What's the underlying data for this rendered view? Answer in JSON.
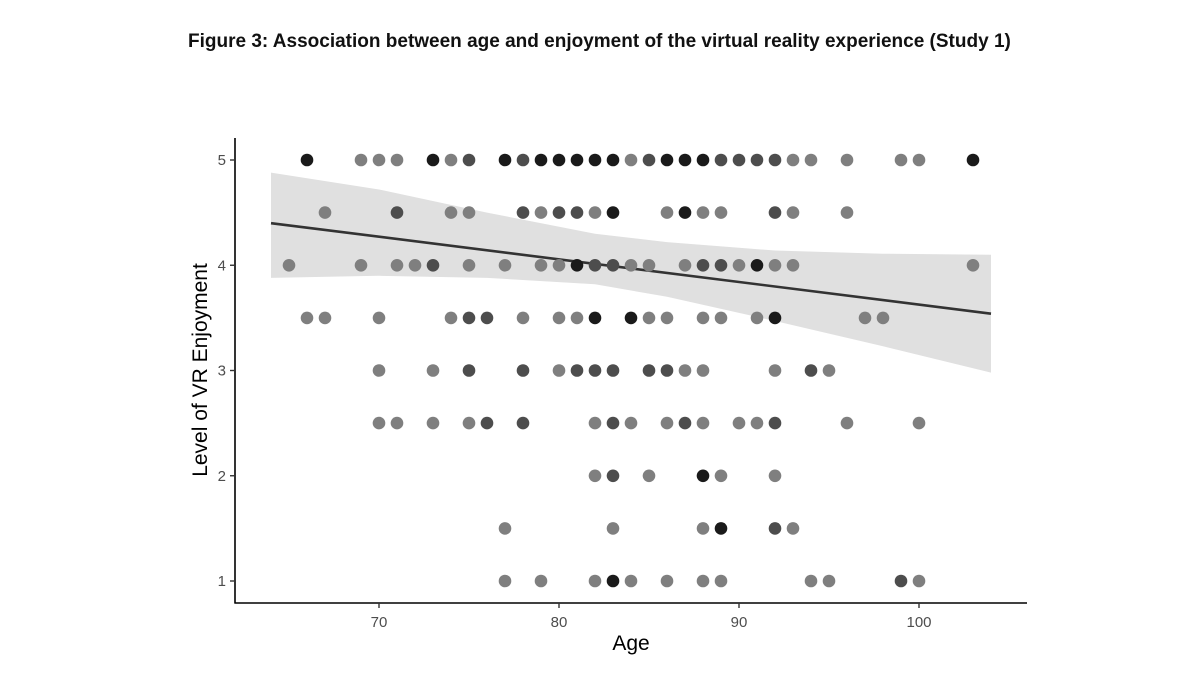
{
  "figure_title": "Figure 3: Association between age and enjoyment of the virtual reality experience (Study 1)",
  "chart_data": {
    "type": "scatter",
    "title": "Figure 3: Association between age and enjoyment of the virtual reality experience (Study 1)",
    "xlabel": "Age",
    "ylabel": "Level of VR Enjoyment",
    "xlim": [
      62,
      106
    ],
    "ylim": [
      0.8,
      5.2
    ],
    "x_ticks": [
      70,
      80,
      90,
      100
    ],
    "y_ticks": [
      1,
      2,
      3,
      4,
      5
    ],
    "grid": false,
    "legend": "none",
    "colors": {
      "light": "#7f7f7f",
      "medium": "#4d4d4d",
      "dark": "#1a1a1a",
      "line": "#333333",
      "band": "#e0e0e0"
    },
    "trend_line": {
      "x": [
        64,
        104
      ],
      "y": [
        4.4,
        3.54
      ]
    },
    "confidence_band": {
      "x": [
        64,
        70,
        76,
        82,
        86,
        92,
        98,
        104
      ],
      "upper": [
        4.88,
        4.72,
        4.5,
        4.3,
        4.22,
        4.14,
        4.11,
        4.1
      ],
      "lower": [
        3.88,
        3.9,
        3.88,
        3.82,
        3.7,
        3.47,
        3.23,
        2.98
      ]
    },
    "points": [
      {
        "x": 66,
        "y": 5,
        "shade": "dark"
      },
      {
        "x": 69,
        "y": 5,
        "shade": "light"
      },
      {
        "x": 70,
        "y": 5,
        "shade": "light"
      },
      {
        "x": 71,
        "y": 5,
        "shade": "light"
      },
      {
        "x": 73,
        "y": 5,
        "shade": "dark"
      },
      {
        "x": 74,
        "y": 5,
        "shade": "light"
      },
      {
        "x": 75,
        "y": 5,
        "shade": "medium"
      },
      {
        "x": 77,
        "y": 5,
        "shade": "dark"
      },
      {
        "x": 78,
        "y": 5,
        "shade": "medium"
      },
      {
        "x": 79,
        "y": 5,
        "shade": "dark"
      },
      {
        "x": 80,
        "y": 5,
        "shade": "dark"
      },
      {
        "x": 81,
        "y": 5,
        "shade": "dark"
      },
      {
        "x": 82,
        "y": 5,
        "shade": "dark"
      },
      {
        "x": 83,
        "y": 5,
        "shade": "dark"
      },
      {
        "x": 84,
        "y": 5,
        "shade": "light"
      },
      {
        "x": 85,
        "y": 5,
        "shade": "medium"
      },
      {
        "x": 86,
        "y": 5,
        "shade": "dark"
      },
      {
        "x": 87,
        "y": 5,
        "shade": "dark"
      },
      {
        "x": 88,
        "y": 5,
        "shade": "dark"
      },
      {
        "x": 89,
        "y": 5,
        "shade": "medium"
      },
      {
        "x": 90,
        "y": 5,
        "shade": "medium"
      },
      {
        "x": 91,
        "y": 5,
        "shade": "medium"
      },
      {
        "x": 92,
        "y": 5,
        "shade": "medium"
      },
      {
        "x": 93,
        "y": 5,
        "shade": "light"
      },
      {
        "x": 94,
        "y": 5,
        "shade": "light"
      },
      {
        "x": 96,
        "y": 5,
        "shade": "light"
      },
      {
        "x": 99,
        "y": 5,
        "shade": "light"
      },
      {
        "x": 100,
        "y": 5,
        "shade": "light"
      },
      {
        "x": 103,
        "y": 5,
        "shade": "dark"
      },
      {
        "x": 67,
        "y": 4.5,
        "shade": "light"
      },
      {
        "x": 71,
        "y": 4.5,
        "shade": "medium"
      },
      {
        "x": 74,
        "y": 4.5,
        "shade": "light"
      },
      {
        "x": 75,
        "y": 4.5,
        "shade": "light"
      },
      {
        "x": 78,
        "y": 4.5,
        "shade": "medium"
      },
      {
        "x": 79,
        "y": 4.5,
        "shade": "light"
      },
      {
        "x": 80,
        "y": 4.5,
        "shade": "medium"
      },
      {
        "x": 81,
        "y": 4.5,
        "shade": "medium"
      },
      {
        "x": 82,
        "y": 4.5,
        "shade": "light"
      },
      {
        "x": 83,
        "y": 4.5,
        "shade": "dark"
      },
      {
        "x": 86,
        "y": 4.5,
        "shade": "light"
      },
      {
        "x": 87,
        "y": 4.5,
        "shade": "dark"
      },
      {
        "x": 88,
        "y": 4.5,
        "shade": "light"
      },
      {
        "x": 89,
        "y": 4.5,
        "shade": "light"
      },
      {
        "x": 92,
        "y": 4.5,
        "shade": "medium"
      },
      {
        "x": 93,
        "y": 4.5,
        "shade": "light"
      },
      {
        "x": 96,
        "y": 4.5,
        "shade": "light"
      },
      {
        "x": 65,
        "y": 4,
        "shade": "light"
      },
      {
        "x": 69,
        "y": 4,
        "shade": "light"
      },
      {
        "x": 71,
        "y": 4,
        "shade": "light"
      },
      {
        "x": 72,
        "y": 4,
        "shade": "light"
      },
      {
        "x": 73,
        "y": 4,
        "shade": "medium"
      },
      {
        "x": 75,
        "y": 4,
        "shade": "light"
      },
      {
        "x": 77,
        "y": 4,
        "shade": "light"
      },
      {
        "x": 79,
        "y": 4,
        "shade": "light"
      },
      {
        "x": 80,
        "y": 4,
        "shade": "light"
      },
      {
        "x": 81,
        "y": 4,
        "shade": "dark"
      },
      {
        "x": 82,
        "y": 4,
        "shade": "medium"
      },
      {
        "x": 83,
        "y": 4,
        "shade": "medium"
      },
      {
        "x": 84,
        "y": 4,
        "shade": "light"
      },
      {
        "x": 85,
        "y": 4,
        "shade": "light"
      },
      {
        "x": 87,
        "y": 4,
        "shade": "light"
      },
      {
        "x": 88,
        "y": 4,
        "shade": "medium"
      },
      {
        "x": 89,
        "y": 4,
        "shade": "medium"
      },
      {
        "x": 90,
        "y": 4,
        "shade": "light"
      },
      {
        "x": 91,
        "y": 4,
        "shade": "dark"
      },
      {
        "x": 92,
        "y": 4,
        "shade": "light"
      },
      {
        "x": 93,
        "y": 4,
        "shade": "light"
      },
      {
        "x": 103,
        "y": 4,
        "shade": "light"
      },
      {
        "x": 66,
        "y": 3.5,
        "shade": "light"
      },
      {
        "x": 67,
        "y": 3.5,
        "shade": "light"
      },
      {
        "x": 70,
        "y": 3.5,
        "shade": "light"
      },
      {
        "x": 74,
        "y": 3.5,
        "shade": "light"
      },
      {
        "x": 75,
        "y": 3.5,
        "shade": "medium"
      },
      {
        "x": 76,
        "y": 3.5,
        "shade": "medium"
      },
      {
        "x": 78,
        "y": 3.5,
        "shade": "light"
      },
      {
        "x": 80,
        "y": 3.5,
        "shade": "light"
      },
      {
        "x": 81,
        "y": 3.5,
        "shade": "light"
      },
      {
        "x": 82,
        "y": 3.5,
        "shade": "dark"
      },
      {
        "x": 84,
        "y": 3.5,
        "shade": "dark"
      },
      {
        "x": 85,
        "y": 3.5,
        "shade": "light"
      },
      {
        "x": 86,
        "y": 3.5,
        "shade": "light"
      },
      {
        "x": 88,
        "y": 3.5,
        "shade": "light"
      },
      {
        "x": 89,
        "y": 3.5,
        "shade": "light"
      },
      {
        "x": 91,
        "y": 3.5,
        "shade": "light"
      },
      {
        "x": 92,
        "y": 3.5,
        "shade": "dark"
      },
      {
        "x": 97,
        "y": 3.5,
        "shade": "light"
      },
      {
        "x": 98,
        "y": 3.5,
        "shade": "light"
      },
      {
        "x": 70,
        "y": 3,
        "shade": "light"
      },
      {
        "x": 73,
        "y": 3,
        "shade": "light"
      },
      {
        "x": 75,
        "y": 3,
        "shade": "medium"
      },
      {
        "x": 78,
        "y": 3,
        "shade": "medium"
      },
      {
        "x": 80,
        "y": 3,
        "shade": "light"
      },
      {
        "x": 81,
        "y": 3,
        "shade": "medium"
      },
      {
        "x": 82,
        "y": 3,
        "shade": "medium"
      },
      {
        "x": 83,
        "y": 3,
        "shade": "medium"
      },
      {
        "x": 85,
        "y": 3,
        "shade": "medium"
      },
      {
        "x": 86,
        "y": 3,
        "shade": "medium"
      },
      {
        "x": 87,
        "y": 3,
        "shade": "light"
      },
      {
        "x": 88,
        "y": 3,
        "shade": "light"
      },
      {
        "x": 92,
        "y": 3,
        "shade": "light"
      },
      {
        "x": 94,
        "y": 3,
        "shade": "medium"
      },
      {
        "x": 95,
        "y": 3,
        "shade": "light"
      },
      {
        "x": 70,
        "y": 2.5,
        "shade": "light"
      },
      {
        "x": 71,
        "y": 2.5,
        "shade": "light"
      },
      {
        "x": 73,
        "y": 2.5,
        "shade": "light"
      },
      {
        "x": 75,
        "y": 2.5,
        "shade": "light"
      },
      {
        "x": 76,
        "y": 2.5,
        "shade": "medium"
      },
      {
        "x": 78,
        "y": 2.5,
        "shade": "medium"
      },
      {
        "x": 82,
        "y": 2.5,
        "shade": "light"
      },
      {
        "x": 83,
        "y": 2.5,
        "shade": "medium"
      },
      {
        "x": 84,
        "y": 2.5,
        "shade": "light"
      },
      {
        "x": 86,
        "y": 2.5,
        "shade": "light"
      },
      {
        "x": 87,
        "y": 2.5,
        "shade": "medium"
      },
      {
        "x": 88,
        "y": 2.5,
        "shade": "light"
      },
      {
        "x": 90,
        "y": 2.5,
        "shade": "light"
      },
      {
        "x": 91,
        "y": 2.5,
        "shade": "light"
      },
      {
        "x": 92,
        "y": 2.5,
        "shade": "medium"
      },
      {
        "x": 96,
        "y": 2.5,
        "shade": "light"
      },
      {
        "x": 100,
        "y": 2.5,
        "shade": "light"
      },
      {
        "x": 82,
        "y": 2,
        "shade": "light"
      },
      {
        "x": 83,
        "y": 2,
        "shade": "medium"
      },
      {
        "x": 85,
        "y": 2,
        "shade": "light"
      },
      {
        "x": 88,
        "y": 2,
        "shade": "dark"
      },
      {
        "x": 89,
        "y": 2,
        "shade": "light"
      },
      {
        "x": 92,
        "y": 2,
        "shade": "light"
      },
      {
        "x": 77,
        "y": 1.5,
        "shade": "light"
      },
      {
        "x": 83,
        "y": 1.5,
        "shade": "light"
      },
      {
        "x": 88,
        "y": 1.5,
        "shade": "light"
      },
      {
        "x": 89,
        "y": 1.5,
        "shade": "dark"
      },
      {
        "x": 92,
        "y": 1.5,
        "shade": "medium"
      },
      {
        "x": 93,
        "y": 1.5,
        "shade": "light"
      },
      {
        "x": 77,
        "y": 1,
        "shade": "light"
      },
      {
        "x": 79,
        "y": 1,
        "shade": "light"
      },
      {
        "x": 82,
        "y": 1,
        "shade": "light"
      },
      {
        "x": 83,
        "y": 1,
        "shade": "dark"
      },
      {
        "x": 84,
        "y": 1,
        "shade": "light"
      },
      {
        "x": 86,
        "y": 1,
        "shade": "light"
      },
      {
        "x": 88,
        "y": 1,
        "shade": "light"
      },
      {
        "x": 89,
        "y": 1,
        "shade": "light"
      },
      {
        "x": 94,
        "y": 1,
        "shade": "light"
      },
      {
        "x": 95,
        "y": 1,
        "shade": "light"
      },
      {
        "x": 99,
        "y": 1,
        "shade": "medium"
      },
      {
        "x": 100,
        "y": 1,
        "shade": "light"
      }
    ]
  }
}
